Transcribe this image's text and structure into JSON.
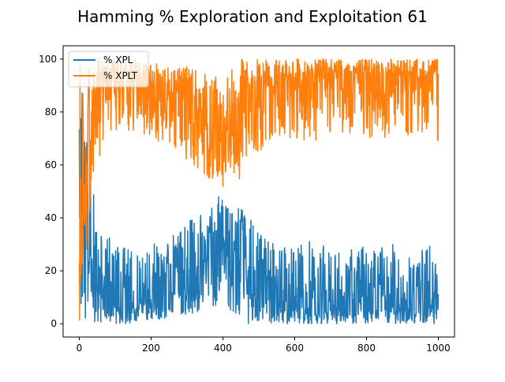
{
  "chart_data": {
    "type": "line",
    "title": "Hamming % Exploration and Exploitation 61",
    "xlabel": "",
    "ylabel": "",
    "xlim": [
      -45,
      1045
    ],
    "ylim": [
      -5,
      105
    ],
    "xticks": [
      0,
      200,
      400,
      600,
      800,
      1000
    ],
    "yticks": [
      0,
      20,
      40,
      60,
      80,
      100
    ],
    "grid": false,
    "legend": {
      "position": "upper-left"
    },
    "colors": {
      "xpl": "#1f77b4",
      "xplt": "#ff7f0e"
    },
    "series": [
      {
        "name": "% XPL",
        "x": [
          0,
          50,
          100,
          150,
          200,
          250,
          300,
          350,
          400,
          450,
          500,
          550,
          600,
          650,
          700,
          750,
          800,
          850,
          900,
          950,
          1000
        ],
        "y": [
          55,
          8,
          7,
          8,
          10,
          12,
          15,
          22,
          30,
          20,
          10,
          8,
          7,
          7,
          6,
          6,
          6,
          6,
          6,
          6,
          6
        ],
        "y_upper": [
          100,
          38,
          30,
          28,
          30,
          33,
          38,
          45,
          49,
          45,
          35,
          30,
          30,
          32,
          28,
          28,
          30,
          30,
          30,
          28,
          32
        ],
        "y_lower": [
          0,
          0,
          0,
          0,
          1,
          2,
          3,
          5,
          8,
          0,
          0,
          0,
          0,
          0,
          0,
          0,
          0,
          0,
          0,
          0,
          0
        ]
      },
      {
        "name": "% XPLT",
        "x": [
          0,
          50,
          100,
          150,
          200,
          250,
          300,
          350,
          400,
          450,
          500,
          550,
          600,
          650,
          700,
          750,
          800,
          850,
          900,
          950,
          1000
        ],
        "y": [
          45,
          92,
          93,
          92,
          90,
          88,
          85,
          78,
          70,
          80,
          90,
          92,
          93,
          93,
          94,
          94,
          94,
          94,
          94,
          94,
          94
        ],
        "y_upper": [
          100,
          100,
          100,
          100,
          99,
          98,
          97,
          95,
          92,
          100,
          100,
          100,
          100,
          100,
          100,
          100,
          100,
          100,
          100,
          100,
          100
        ],
        "y_lower": [
          0,
          62,
          70,
          72,
          70,
          67,
          62,
          55,
          51,
          55,
          65,
          70,
          70,
          68,
          72,
          72,
          70,
          70,
          70,
          72,
          68
        ]
      }
    ]
  }
}
